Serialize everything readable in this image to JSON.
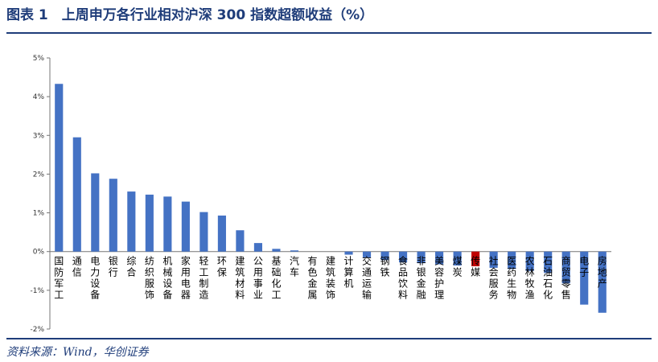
{
  "title": "图表 1　上周申万各行业相对沪深 300 指数超额收益（%）",
  "source": "资料来源：Wind，华创证券",
  "colors": {
    "bar": "#4472c4",
    "highlight": "#c00000",
    "rule": "#1f3d7a"
  },
  "chart_data": {
    "type": "bar",
    "title": "",
    "xlabel": "",
    "ylabel": "",
    "ylim": [
      -2,
      5
    ],
    "yticks": [
      "-2%",
      "-1%",
      "0%",
      "1%",
      "2%",
      "3%",
      "4%",
      "5%"
    ],
    "grid": false,
    "categories": [
      "国防军工",
      "通信",
      "电力设备",
      "银行",
      "综合",
      "纺织服饰",
      "机械设备",
      "家用电器",
      "轻工制造",
      "环保",
      "建筑材料",
      "公用事业",
      "基础化工",
      "汽车",
      "有色金属",
      "建筑装饰",
      "计算机",
      "交通运输",
      "钢铁",
      "食品饮料",
      "非银金融",
      "美容护理",
      "煤炭",
      "传媒",
      "社会服务",
      "医药生物",
      "农林牧渔",
      "石油石化",
      "商贸零售",
      "电子",
      "房地产"
    ],
    "values": [
      4.33,
      2.95,
      2.02,
      1.88,
      1.55,
      1.47,
      1.42,
      1.29,
      1.02,
      0.93,
      0.55,
      0.22,
      0.07,
      0.03,
      0.0,
      0.0,
      -0.08,
      -0.15,
      -0.22,
      -0.28,
      -0.3,
      -0.33,
      -0.36,
      -0.38,
      -0.42,
      -0.45,
      -0.5,
      -0.55,
      -0.82,
      -1.37,
      -1.58
    ],
    "highlight_index": 23
  }
}
